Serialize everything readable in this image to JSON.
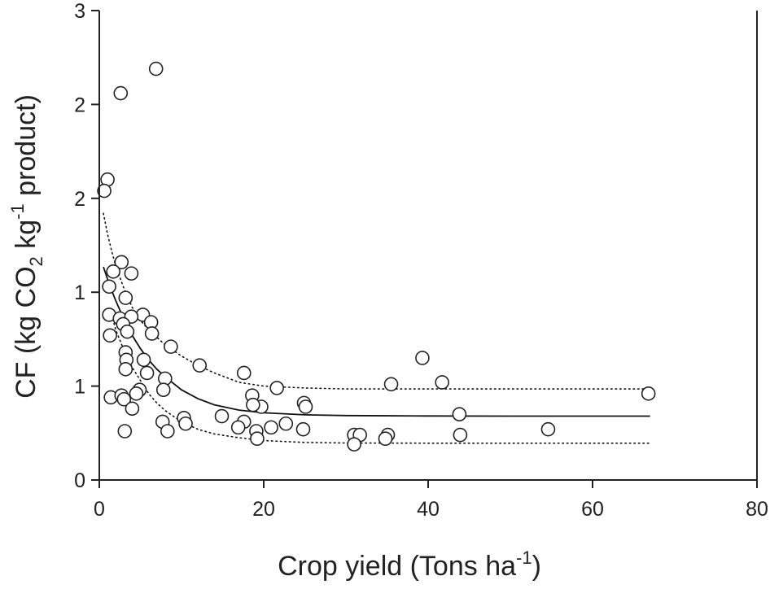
{
  "chart_data": {
    "type": "scatter",
    "xlabel": {
      "main": "Crop yield (Tons ha",
      "sup": "-1",
      "tail": ")"
    },
    "ylabel": {
      "a": "CF (kg CO",
      "sub": "2",
      "b": " kg",
      "sup": "-1",
      "c": " product)"
    },
    "xlim": [
      0,
      80
    ],
    "ylim": [
      0,
      2.5
    ],
    "x_ticks": [
      0,
      20,
      40,
      60,
      80
    ],
    "x_tick_labels": [
      "0",
      "20",
      "40",
      "60",
      "80"
    ],
    "y_ticks": [
      0,
      0.5,
      1.0,
      1.5,
      2.0,
      2.5
    ],
    "y_tick_labels": [
      "0",
      "1",
      "1",
      "2",
      "2",
      "3"
    ],
    "grid": false,
    "legend": "none",
    "colors": {
      "axis": "#222222",
      "marker_fill": "#ffffff",
      "marker_edge": "#222222",
      "fit": "#111111"
    },
    "points": [
      [
        6.9,
        2.19
      ],
      [
        2.6,
        2.06
      ],
      [
        1.0,
        1.6
      ],
      [
        0.6,
        1.54
      ],
      [
        2.7,
        1.16
      ],
      [
        1.7,
        1.11
      ],
      [
        3.9,
        1.1
      ],
      [
        1.2,
        1.03
      ],
      [
        3.2,
        0.97
      ],
      [
        1.2,
        0.88
      ],
      [
        5.3,
        0.88
      ],
      [
        2.5,
        0.86
      ],
      [
        3.9,
        0.87
      ],
      [
        6.3,
        0.84
      ],
      [
        2.9,
        0.83
      ],
      [
        3.4,
        0.79
      ],
      [
        6.4,
        0.78
      ],
      [
        1.3,
        0.77
      ],
      [
        8.7,
        0.71
      ],
      [
        3.2,
        0.68
      ],
      [
        5.4,
        0.64
      ],
      [
        3.3,
        0.64
      ],
      [
        12.2,
        0.61
      ],
      [
        3.2,
        0.59
      ],
      [
        5.8,
        0.57
      ],
      [
        17.6,
        0.57
      ],
      [
        8.0,
        0.54
      ],
      [
        39.3,
        0.65
      ],
      [
        41.7,
        0.52
      ],
      [
        35.5,
        0.51
      ],
      [
        21.6,
        0.49
      ],
      [
        7.8,
        0.48
      ],
      [
        4.9,
        0.48
      ],
      [
        4.5,
        0.46
      ],
      [
        1.4,
        0.44
      ],
      [
        2.7,
        0.45
      ],
      [
        3.0,
        0.43
      ],
      [
        18.6,
        0.45
      ],
      [
        66.8,
        0.46
      ],
      [
        24.9,
        0.41
      ],
      [
        25.1,
        0.39
      ],
      [
        19.7,
        0.39
      ],
      [
        4.0,
        0.38
      ],
      [
        18.7,
        0.4
      ],
      [
        43.8,
        0.35
      ],
      [
        14.9,
        0.34
      ],
      [
        10.3,
        0.33
      ],
      [
        7.7,
        0.31
      ],
      [
        17.6,
        0.31
      ],
      [
        10.5,
        0.3
      ],
      [
        22.7,
        0.3
      ],
      [
        16.9,
        0.28
      ],
      [
        20.9,
        0.28
      ],
      [
        8.3,
        0.26
      ],
      [
        3.1,
        0.26
      ],
      [
        19.1,
        0.26
      ],
      [
        24.8,
        0.27
      ],
      [
        54.6,
        0.27
      ],
      [
        31.0,
        0.24
      ],
      [
        31.7,
        0.24
      ],
      [
        35.1,
        0.24
      ],
      [
        43.9,
        0.24
      ],
      [
        34.8,
        0.22
      ],
      [
        19.2,
        0.22
      ],
      [
        31.0,
        0.19
      ]
    ],
    "fit": {
      "x": [
        0.5,
        1,
        1.5,
        2,
        3,
        4,
        5,
        6,
        7,
        8,
        10,
        12,
        14,
        17,
        20,
        25,
        30,
        35,
        40,
        50,
        60,
        67
      ],
      "y": [
        1.135,
        1.07,
        1.01,
        0.955,
        0.855,
        0.77,
        0.7,
        0.64,
        0.59,
        0.55,
        0.48,
        0.433,
        0.4,
        0.372,
        0.358,
        0.347,
        0.343,
        0.342,
        0.341,
        0.34,
        0.34,
        0.34
      ]
    },
    "upper_band": {
      "x": [
        0.5,
        1,
        1.5,
        2,
        3,
        4,
        5,
        6,
        7,
        8,
        10,
        12,
        14,
        17,
        20,
        25,
        30,
        40,
        50,
        60,
        67
      ],
      "y": [
        1.42,
        1.31,
        1.22,
        1.14,
        1.02,
        0.92,
        0.85,
        0.8,
        0.76,
        0.72,
        0.66,
        0.61,
        0.57,
        0.52,
        0.5,
        0.49,
        0.485,
        0.485,
        0.485,
        0.485,
        0.485
      ]
    },
    "lower_band": {
      "x": [
        1.5,
        2,
        3,
        4,
        5,
        6,
        7,
        8,
        10,
        12,
        14,
        17,
        20,
        25,
        30,
        40,
        50,
        60,
        67
      ],
      "y": [
        0.88,
        0.8,
        0.69,
        0.6,
        0.53,
        0.46,
        0.41,
        0.37,
        0.31,
        0.27,
        0.245,
        0.225,
        0.21,
        0.2,
        0.197,
        0.196,
        0.196,
        0.196,
        0.196
      ]
    }
  }
}
